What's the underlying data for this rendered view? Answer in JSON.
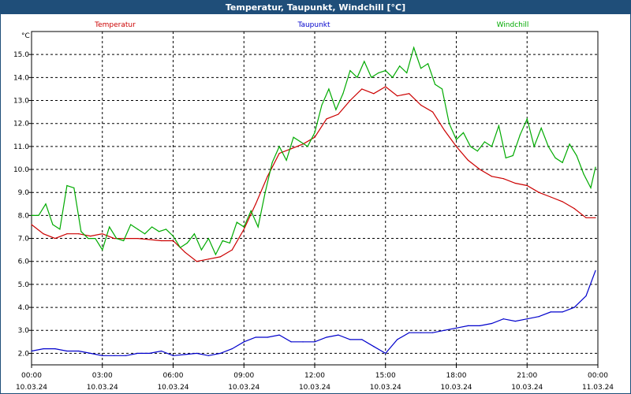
{
  "window": {
    "title": "Temperatur, Taupunkt, Windchill [°C]"
  },
  "chart_data": {
    "type": "line",
    "title": "Temperatur, Taupunkt, Windchill [°C]",
    "ylabel": "°C",
    "ylim": [
      1.5,
      16.0
    ],
    "y_ticks": [
      "2.0",
      "3.0",
      "4.0",
      "5.0",
      "6.0",
      "7.0",
      "8.0",
      "9.0",
      "10.0",
      "11.0",
      "12.0",
      "13.0",
      "14.0",
      "15.0"
    ],
    "x_ticks": [
      {
        "time": "00:00",
        "date": "10.03.24"
      },
      {
        "time": "03:00",
        "date": "10.03.24"
      },
      {
        "time": "06:00",
        "date": "10.03.24"
      },
      {
        "time": "09:00",
        "date": "10.03.24"
      },
      {
        "time": "12:00",
        "date": "10.03.24"
      },
      {
        "time": "15:00",
        "date": "10.03.24"
      },
      {
        "time": "18:00",
        "date": "10.03.24"
      },
      {
        "time": "21:00",
        "date": "10.03.24"
      },
      {
        "time": "00:00",
        "date": "11.03.24"
      }
    ],
    "x_unit": "hours",
    "xlim": [
      0,
      24
    ],
    "grid": true,
    "legend_placement": "top",
    "series": [
      {
        "name": "Temperatur",
        "color": "#cc0000",
        "x": [
          0,
          0.5,
          1,
          1.5,
          2,
          2.5,
          3,
          3.5,
          4,
          4.5,
          5,
          5.5,
          6,
          6.5,
          7,
          7.5,
          8,
          8.5,
          9,
          9.5,
          10,
          10.5,
          11,
          11.5,
          12,
          12.5,
          13,
          13.5,
          14,
          14.5,
          15,
          15.5,
          16,
          16.5,
          17,
          17.5,
          18,
          18.5,
          19,
          19.5,
          20,
          20.5,
          21,
          21.5,
          22,
          22.5,
          23,
          23.5,
          23.9
        ],
        "y": [
          7.6,
          7.2,
          7.0,
          7.2,
          7.2,
          7.1,
          7.2,
          7.0,
          7.0,
          7.0,
          6.95,
          6.9,
          6.9,
          6.4,
          6.0,
          6.1,
          6.2,
          6.5,
          7.4,
          8.5,
          9.7,
          10.7,
          10.9,
          11.1,
          11.4,
          12.2,
          12.4,
          13.0,
          13.5,
          13.3,
          13.6,
          13.2,
          13.3,
          12.8,
          12.5,
          11.7,
          11.0,
          10.4,
          10.0,
          9.7,
          9.6,
          9.4,
          9.3,
          9.0,
          8.8,
          8.6,
          8.3,
          7.9,
          7.9
        ]
      },
      {
        "name": "Taupunkt",
        "color": "#0000cc",
        "x": [
          0,
          0.5,
          1,
          1.5,
          2,
          2.5,
          3,
          3.5,
          4,
          4.5,
          5,
          5.5,
          6,
          6.5,
          7,
          7.5,
          8,
          8.5,
          9,
          9.5,
          10,
          10.5,
          11,
          11.5,
          12,
          12.5,
          13,
          13.5,
          14,
          14.5,
          15,
          15.5,
          16,
          16.5,
          17,
          17.5,
          18,
          18.5,
          19,
          19.5,
          20,
          20.5,
          21,
          21.5,
          22,
          22.5,
          23,
          23.5,
          23.9
        ],
        "y": [
          2.1,
          2.2,
          2.2,
          2.1,
          2.1,
          2.0,
          1.9,
          1.9,
          1.9,
          2.0,
          2.0,
          2.1,
          1.9,
          1.95,
          2.0,
          1.9,
          2.0,
          2.2,
          2.5,
          2.7,
          2.7,
          2.8,
          2.5,
          2.5,
          2.5,
          2.7,
          2.8,
          2.6,
          2.6,
          2.3,
          2.0,
          2.6,
          2.9,
          2.9,
          2.9,
          3.0,
          3.1,
          3.2,
          3.2,
          3.3,
          3.5,
          3.4,
          3.5,
          3.6,
          3.8,
          3.8,
          4.0,
          4.5,
          5.6
        ]
      },
      {
        "name": "Windchill",
        "color": "#00aa00",
        "x": [
          0,
          0.3,
          0.6,
          0.9,
          1.2,
          1.5,
          1.8,
          2.1,
          2.4,
          2.7,
          3,
          3.3,
          3.6,
          3.9,
          4.2,
          4.5,
          4.8,
          5.1,
          5.4,
          5.7,
          6,
          6.3,
          6.6,
          6.9,
          7.2,
          7.5,
          7.8,
          8.1,
          8.4,
          8.7,
          9,
          9.3,
          9.6,
          9.9,
          10.2,
          10.5,
          10.8,
          11.1,
          11.4,
          11.7,
          12,
          12.3,
          12.6,
          12.9,
          13.2,
          13.5,
          13.8,
          14.1,
          14.4,
          14.7,
          15,
          15.3,
          15.6,
          15.9,
          16.2,
          16.5,
          16.8,
          17.1,
          17.4,
          17.7,
          18,
          18.3,
          18.6,
          18.9,
          19.2,
          19.5,
          19.8,
          20.1,
          20.4,
          20.7,
          21,
          21.3,
          21.6,
          21.9,
          22.2,
          22.5,
          22.8,
          23.1,
          23.4,
          23.7,
          23.9
        ],
        "y": [
          8.0,
          8.0,
          8.5,
          7.6,
          7.4,
          9.3,
          9.2,
          7.3,
          7.0,
          7.0,
          6.5,
          7.5,
          7.0,
          6.9,
          7.6,
          7.4,
          7.2,
          7.5,
          7.3,
          7.4,
          7.1,
          6.6,
          6.8,
          7.2,
          6.5,
          7.0,
          6.3,
          6.9,
          6.8,
          7.7,
          7.5,
          8.2,
          7.5,
          9.0,
          10.3,
          11.0,
          10.4,
          11.4,
          11.2,
          11.0,
          11.6,
          12.8,
          13.5,
          12.6,
          13.3,
          14.3,
          14.0,
          14.7,
          14.0,
          14.2,
          14.3,
          14.0,
          14.5,
          14.2,
          15.3,
          14.4,
          14.6,
          13.7,
          13.5,
          12.0,
          11.3,
          11.6,
          11.0,
          10.8,
          11.2,
          11.0,
          11.9,
          10.5,
          10.6,
          11.5,
          12.2,
          11.0,
          11.8,
          11.0,
          10.5,
          10.3,
          11.1,
          10.6,
          9.8,
          9.2,
          10.1
        ]
      }
    ]
  }
}
